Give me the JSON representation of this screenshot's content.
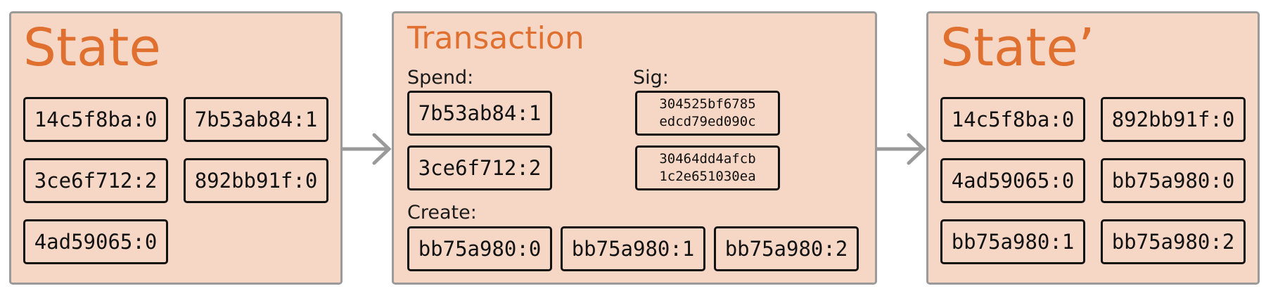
{
  "state": {
    "title": "State",
    "outputs": [
      "14c5f8ba:0",
      "7b53ab84:1",
      "3ce6f712:2",
      "892bb91f:0",
      "4ad59065:0"
    ]
  },
  "transaction": {
    "title": "Transaction",
    "spend_label": "Spend:",
    "sig_label": "Sig:",
    "create_label": "Create:",
    "spend": [
      "7b53ab84:1",
      "3ce6f712:2"
    ],
    "sigs": [
      {
        "line1": "304525bf6785",
        "line2": "edcd79ed090c"
      },
      {
        "line1": "30464dd4afcb",
        "line2": "1c2e651030ea"
      }
    ],
    "create": [
      "bb75a980:0",
      "bb75a980:1",
      "bb75a980:2"
    ]
  },
  "state_prime": {
    "title": "State’",
    "outputs": [
      "14c5f8ba:0",
      "892bb91f:0",
      "4ad59065:0",
      "bb75a980:0",
      "bb75a980:1",
      "bb75a980:2"
    ]
  },
  "colors": {
    "panel_fill": "#f6d7c6",
    "panel_border": "#9a9a9a",
    "title": "#e07030",
    "box_border": "#111111",
    "arrow": "#9a9a9a"
  }
}
